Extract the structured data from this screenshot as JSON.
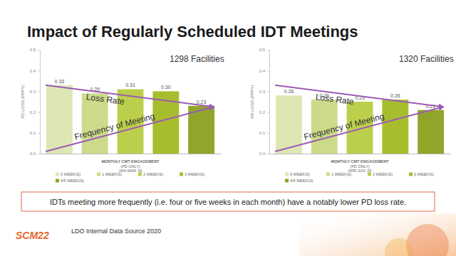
{
  "title": "Impact of Regularly Scheduled IDT Meetings",
  "caption": "IDTs meeting more frequently (i.e. four or five weeks in each month) have a notably lower PD loss rate.",
  "source": "LDO Internal Data Source 2020",
  "logo": "SCM22",
  "chart_data": [
    {
      "type": "bar",
      "subtitle": "1298 Facilities",
      "x_label": "MONTHLY  CMT ENGAGEMENT\n(PD ONLY)\nJAN-MAR '20",
      "y_label": "PD LOSS (PPPY)",
      "annotations": [
        "Loss Rate",
        "Frequency of Meeting"
      ],
      "categories": [
        null
      ],
      "series": [
        {
          "name": "0 WEEK(S)",
          "color": "#dde7b3",
          "values": [
            0.33
          ]
        },
        {
          "name": "1 WEEK(S)",
          "color": "#cbdb8a",
          "values": [
            0.29
          ]
        },
        {
          "name": "2 WEEK(S)",
          "color": "#bccf4c",
          "values": [
            0.31
          ]
        },
        {
          "name": "3 WEEK(S)",
          "color": "#a8bd2e",
          "values": [
            0.3
          ],
          "value_labels": [
            "0.30"
          ]
        },
        {
          "name": "4/5 WEEK(S)",
          "color": "#91a52a",
          "values": [
            0.23
          ]
        }
      ],
      "ylim": [
        0,
        0.5
      ],
      "yticks": [
        {
          "value": 0,
          "label": "0.0"
        },
        0.1,
        0.2,
        0.3,
        0.4,
        0.5
      ],
      "grid": false,
      "legend": "bottom",
      "data_labels": true
    },
    {
      "type": "bar",
      "subtitle": "1320 Facilities",
      "x_label": "MONTHLY  CMT ENGAGEMENT\n(PD ONLY)\nAPR-JUN '20",
      "y_label": "PD LOSS (PPPY)",
      "annotations": [
        "Loss Rate",
        "Frequency of Meeting"
      ],
      "categories": [
        null
      ],
      "series": [
        {
          "name": "0 WEEK(S)",
          "color": "#dde7b3",
          "values": [
            0.28
          ]
        },
        {
          "name": "1 WEEK(S)",
          "color": "#cbdb8a",
          "values": [
            0.26
          ]
        },
        {
          "name": "2 WEEK(S)",
          "color": "#bccf4c",
          "values": [
            0.25
          ]
        },
        {
          "name": "3 WEEK(S)",
          "color": "#a8bd2e",
          "values": [
            0.26
          ]
        },
        {
          "name": "4/5 WEEK(S)",
          "color": "#91a52a",
          "values": [
            0.21
          ]
        }
      ],
      "ylim": [
        0,
        0.5
      ],
      "yticks": [
        {
          "value": 0,
          "label": "0.0"
        },
        0.1,
        0.2,
        0.3,
        0.4,
        0.5
      ],
      "grid": false,
      "legend": "bottom",
      "data_labels": true
    }
  ]
}
